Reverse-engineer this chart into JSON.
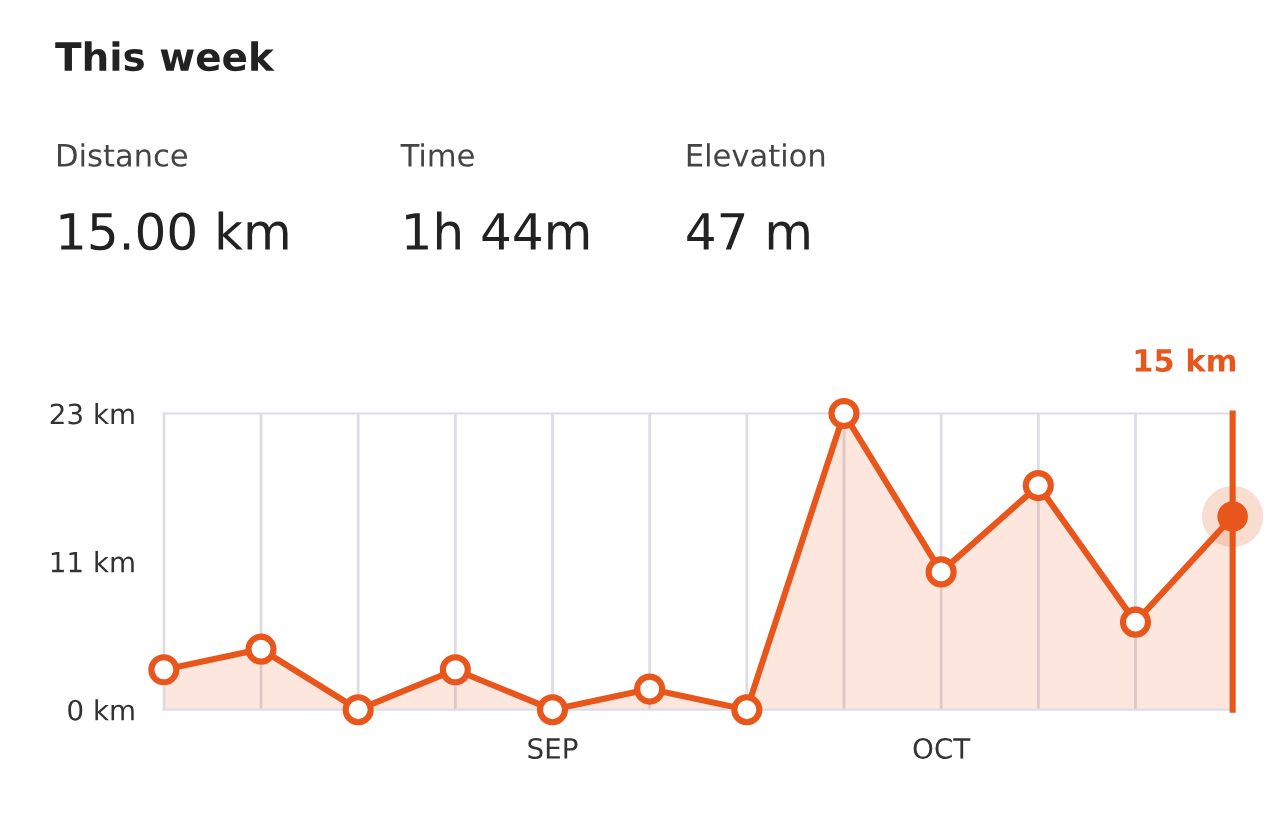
{
  "chart_data": {
    "type": "area",
    "title": "This week",
    "annotations": [
      "Distance",
      "15.00 km",
      "Time",
      "1h 44m",
      "Elevation",
      "47 m",
      "15 km"
    ],
    "categories": [
      null,
      null,
      null,
      null,
      "SEP",
      null,
      null,
      null,
      "OCT",
      null,
      null,
      null
    ],
    "series": [
      {
        "color": "#e8561b",
        "values": [
          3.1,
          4.7,
          0,
          3.1,
          0,
          1.6,
          0,
          23,
          10.7,
          17.4,
          6.8,
          15
        ]
      }
    ],
    "ylim": [
      0,
      23
    ],
    "yticks": [
      {
        "value": 0,
        "label": "0 km"
      },
      {
        "value": 11.5,
        "label": "11 km"
      },
      {
        "value": 23,
        "label": "23 km"
      }
    ],
    "grid": "x",
    "marker": "circle",
    "line_style": "solid"
  }
}
